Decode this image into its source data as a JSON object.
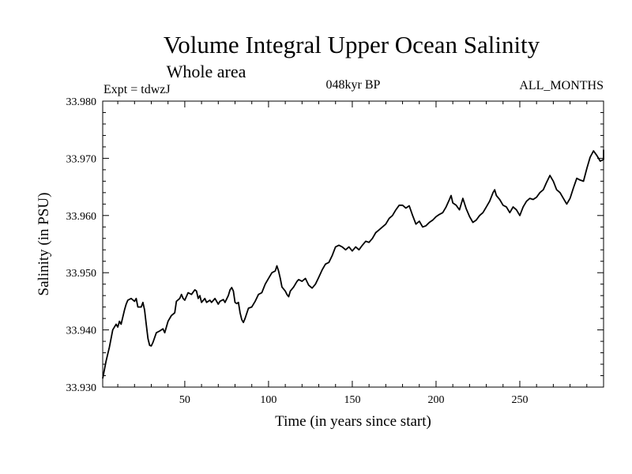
{
  "chart_data": {
    "type": "line",
    "title": "Volume Integral Upper Ocean Salinity",
    "subtitle": "Whole area",
    "annotations": {
      "left": "Expt = tdwzJ",
      "center": "048kyr BP",
      "right": "ALL_MONTHS"
    },
    "xlabel": "Time (in years since start)",
    "ylabel": "Salinity (in PSU)",
    "xlim": [
      1,
      300
    ],
    "ylim": [
      33.93,
      33.98
    ],
    "xticks": [
      50,
      100,
      150,
      200,
      250
    ],
    "yticks": [
      "33.930",
      "33.940",
      "33.950",
      "33.960",
      "33.970",
      "33.980"
    ],
    "grid": false,
    "series": [
      {
        "color": "#000000",
        "points": [
          [
            1,
            33.9315
          ],
          [
            3,
            33.9345
          ],
          [
            5,
            33.937
          ],
          [
            7,
            33.94
          ],
          [
            9,
            33.941
          ],
          [
            10,
            33.9405
          ],
          [
            11,
            33.9415
          ],
          [
            12,
            33.941
          ],
          [
            14,
            33.9435
          ],
          [
            15,
            33.9445
          ],
          [
            16,
            33.9452
          ],
          [
            18,
            33.9455
          ],
          [
            20,
            33.945
          ],
          [
            21,
            33.9455
          ],
          [
            22,
            33.944
          ],
          [
            24,
            33.944
          ],
          [
            25,
            33.9448
          ],
          [
            26,
            33.9435
          ],
          [
            27,
            33.941
          ],
          [
            28,
            33.9385
          ],
          [
            29,
            33.9373
          ],
          [
            30,
            33.9372
          ],
          [
            31,
            33.9378
          ],
          [
            33,
            33.9395
          ],
          [
            35,
            33.9398
          ],
          [
            37,
            33.9402
          ],
          [
            38,
            33.9395
          ],
          [
            40,
            33.9415
          ],
          [
            42,
            33.9425
          ],
          [
            44,
            33.943
          ],
          [
            45,
            33.945
          ],
          [
            47,
            33.9455
          ],
          [
            48,
            33.9462
          ],
          [
            49,
            33.9455
          ],
          [
            50,
            33.9452
          ],
          [
            52,
            33.9465
          ],
          [
            54,
            33.9462
          ],
          [
            56,
            33.947
          ],
          [
            57,
            33.9468
          ],
          [
            58,
            33.9455
          ],
          [
            59,
            33.946
          ],
          [
            60,
            33.9448
          ],
          [
            62,
            33.9455
          ],
          [
            63,
            33.9448
          ],
          [
            65,
            33.9452
          ],
          [
            66,
            33.9448
          ],
          [
            68,
            33.9455
          ],
          [
            70,
            33.9445
          ],
          [
            71,
            33.945
          ],
          [
            73,
            33.9453
          ],
          [
            74,
            33.9448
          ],
          [
            76,
            33.946
          ],
          [
            77,
            33.947
          ],
          [
            78,
            33.9474
          ],
          [
            79,
            33.9468
          ],
          [
            80,
            33.9448
          ],
          [
            81,
            33.9446
          ],
          [
            82,
            33.9448
          ],
          [
            83,
            33.943
          ],
          [
            84,
            33.9418
          ],
          [
            85,
            33.9413
          ],
          [
            86,
            33.942
          ],
          [
            88,
            33.9438
          ],
          [
            90,
            33.944
          ],
          [
            92,
            33.945
          ],
          [
            94,
            33.9462
          ],
          [
            96,
            33.9465
          ],
          [
            98,
            33.948
          ],
          [
            100,
            33.949
          ],
          [
            102,
            33.95
          ],
          [
            104,
            33.9503
          ],
          [
            105,
            33.9512
          ],
          [
            106,
            33.9503
          ],
          [
            107,
            33.949
          ],
          [
            108,
            33.9475
          ],
          [
            110,
            33.9468
          ],
          [
            111,
            33.9462
          ],
          [
            112,
            33.9458
          ],
          [
            113,
            33.9468
          ],
          [
            115,
            33.9475
          ],
          [
            117,
            33.9485
          ],
          [
            118,
            33.9488
          ],
          [
            120,
            33.9485
          ],
          [
            122,
            33.949
          ],
          [
            124,
            33.9478
          ],
          [
            126,
            33.9473
          ],
          [
            128,
            33.948
          ],
          [
            130,
            33.9492
          ],
          [
            132,
            33.9505
          ],
          [
            134,
            33.9515
          ],
          [
            136,
            33.9518
          ],
          [
            138,
            33.953
          ],
          [
            140,
            33.9545
          ],
          [
            142,
            33.9548
          ],
          [
            144,
            33.9545
          ],
          [
            146,
            33.954
          ],
          [
            148,
            33.9545
          ],
          [
            150,
            33.9538
          ],
          [
            152,
            33.9545
          ],
          [
            154,
            33.954
          ],
          [
            156,
            33.9548
          ],
          [
            158,
            33.9555
          ],
          [
            160,
            33.9553
          ],
          [
            162,
            33.956
          ],
          [
            164,
            33.957
          ],
          [
            166,
            33.9575
          ],
          [
            168,
            33.958
          ],
          [
            170,
            33.9585
          ],
          [
            172,
            33.9595
          ],
          [
            174,
            33.96
          ],
          [
            176,
            33.961
          ],
          [
            178,
            33.9618
          ],
          [
            180,
            33.9618
          ],
          [
            182,
            33.9613
          ],
          [
            184,
            33.9617
          ],
          [
            186,
            33.96
          ],
          [
            188,
            33.9585
          ],
          [
            190,
            33.959
          ],
          [
            192,
            33.958
          ],
          [
            194,
            33.9582
          ],
          [
            196,
            33.9588
          ],
          [
            198,
            33.9592
          ],
          [
            200,
            33.9598
          ],
          [
            202,
            33.9602
          ],
          [
            204,
            33.9605
          ],
          [
            206,
            33.9615
          ],
          [
            208,
            33.9628
          ],
          [
            209,
            33.9635
          ],
          [
            210,
            33.9622
          ],
          [
            212,
            33.9618
          ],
          [
            214,
            33.961
          ],
          [
            216,
            33.963
          ],
          [
            218,
            33.9612
          ],
          [
            220,
            33.9598
          ],
          [
            222,
            33.9588
          ],
          [
            224,
            33.9592
          ],
          [
            226,
            33.96
          ],
          [
            228,
            33.9605
          ],
          [
            230,
            33.9615
          ],
          [
            232,
            33.9625
          ],
          [
            234,
            33.964
          ],
          [
            235,
            33.9645
          ],
          [
            236,
            33.9635
          ],
          [
            238,
            33.9628
          ],
          [
            240,
            33.9618
          ],
          [
            242,
            33.9615
          ],
          [
            244,
            33.9605
          ],
          [
            246,
            33.9615
          ],
          [
            248,
            33.961
          ],
          [
            250,
            33.96
          ],
          [
            252,
            33.9615
          ],
          [
            254,
            33.9625
          ],
          [
            256,
            33.963
          ],
          [
            258,
            33.9628
          ],
          [
            260,
            33.9632
          ],
          [
            262,
            33.964
          ],
          [
            264,
            33.9645
          ],
          [
            266,
            33.9658
          ],
          [
            268,
            33.967
          ],
          [
            270,
            33.966
          ],
          [
            272,
            33.9645
          ],
          [
            274,
            33.964
          ],
          [
            276,
            33.963
          ],
          [
            278,
            33.962
          ],
          [
            280,
            33.963
          ],
          [
            282,
            33.9648
          ],
          [
            284,
            33.9665
          ],
          [
            286,
            33.9662
          ],
          [
            288,
            33.966
          ],
          [
            290,
            33.9682
          ],
          [
            292,
            33.9702
          ],
          [
            294,
            33.9713
          ],
          [
            296,
            33.9705
          ],
          [
            298,
            33.9695
          ],
          [
            300,
            33.9698
          ],
          [
            302,
            33.9705
          ],
          [
            304,
            33.9712
          ],
          [
            306,
            33.9708
          ],
          [
            308,
            33.9715
          ]
        ]
      }
    ]
  }
}
